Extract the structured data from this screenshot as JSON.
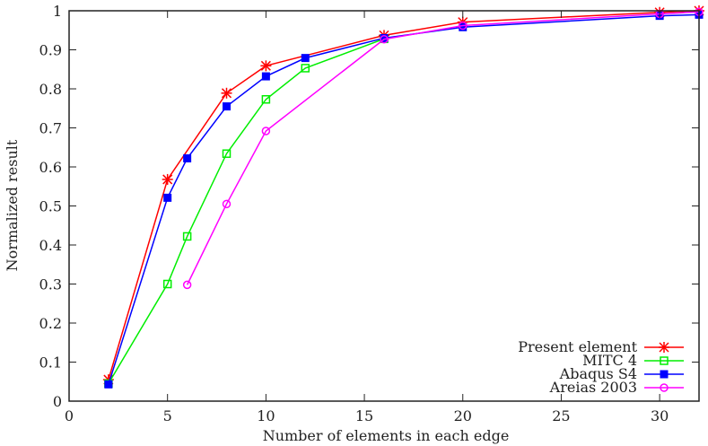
{
  "chart_data": {
    "type": "line",
    "title": "",
    "xlabel": "Number of elements in each edge",
    "ylabel": "Normalized result",
    "xlim": [
      0,
      32
    ],
    "ylim": [
      0,
      1
    ],
    "xticks": [
      0,
      5,
      10,
      15,
      20,
      25,
      30
    ],
    "xtick_labels": [
      "0",
      "5",
      "10",
      "15",
      "20",
      "25",
      "30"
    ],
    "yticks": [
      0,
      0.1,
      0.2,
      0.3,
      0.4,
      0.5,
      0.6,
      0.7,
      0.8,
      0.9,
      1
    ],
    "ytick_labels": [
      "0",
      "0.1",
      "0.2",
      "0.3",
      "0.4",
      "0.5",
      "0.6",
      "0.7",
      "0.8",
      "0.9",
      "1"
    ],
    "grid": false,
    "legend_position": "bottom-right",
    "series": [
      {
        "name": "Present element",
        "color": "#ff0000",
        "marker": "star",
        "x": [
          2,
          5,
          8,
          10,
          16,
          20,
          30,
          32
        ],
        "y": [
          0.055,
          0.568,
          0.789,
          0.859,
          0.937,
          0.971,
          0.996,
          1.0
        ]
      },
      {
        "name": "MITC 4",
        "color": "#00ee00",
        "marker": "open-square",
        "x": [
          2,
          5,
          6,
          8,
          10,
          12,
          16
        ],
        "y": [
          0.045,
          0.3,
          0.422,
          0.634,
          0.773,
          0.853,
          0.928
        ]
      },
      {
        "name": "Abaqus S4",
        "color": "#0000ff",
        "marker": "filled-square",
        "x": [
          2,
          5,
          6,
          8,
          10,
          12,
          16,
          20,
          30,
          32
        ],
        "y": [
          0.043,
          0.521,
          0.622,
          0.755,
          0.832,
          0.879,
          0.93,
          0.958,
          0.987,
          0.99
        ]
      },
      {
        "name": "Areias 2003",
        "color": "#ff00ff",
        "marker": "open-circle",
        "x": [
          6,
          8,
          10,
          16,
          20,
          30,
          32
        ],
        "y": [
          0.298,
          0.505,
          0.692,
          0.927,
          0.962,
          0.992,
          0.997
        ]
      }
    ]
  }
}
